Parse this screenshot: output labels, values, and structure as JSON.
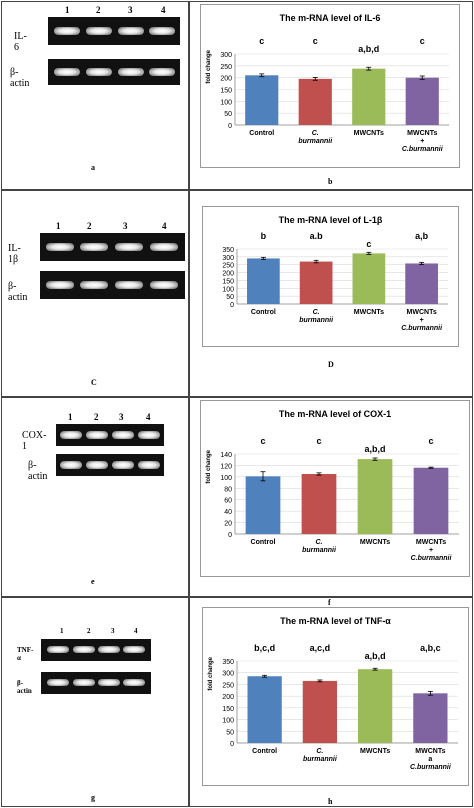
{
  "rows": [
    {
      "gel": {
        "lanes": [
          "1",
          "2",
          "3",
          "4"
        ],
        "gene_label": "IL-6",
        "actin_label": "β-actin",
        "panel_letter": "a"
      },
      "chart_letter": "b",
      "chart_data": {
        "type": "bar",
        "title": "The m-RNA level of IL-6",
        "ylabel": "fold change",
        "xlabel": "",
        "ylim": [
          0,
          300
        ],
        "yticks": [
          0,
          50,
          100,
          150,
          200,
          250,
          300
        ],
        "categories": [
          "Control",
          "C. burmannii",
          "MWCNTs",
          "MWCNTs + C.burmannii"
        ],
        "values": [
          210,
          195,
          238,
          200
        ],
        "errors": [
          6,
          6,
          6,
          7
        ],
        "sig_labels": [
          "c",
          "c",
          "a,b,d",
          "c"
        ],
        "colors": [
          "#4f81bd",
          "#c0504d",
          "#9bbb59",
          "#8064a2"
        ]
      }
    },
    {
      "gel": {
        "lanes": [
          "1",
          "2",
          "3",
          "4"
        ],
        "gene_label": "IL-1β",
        "actin_label": "β-actin",
        "panel_letter": "C"
      },
      "chart_letter": "D",
      "chart_data": {
        "type": "bar",
        "title": "The m-RNA level of L-1β",
        "ylabel": "",
        "xlabel": "",
        "ylim": [
          0,
          350
        ],
        "yticks": [
          0,
          50,
          100,
          150,
          200,
          250,
          300,
          350
        ],
        "categories": [
          "Control",
          "C. burmannii",
          "MWCNTs",
          "MWCNTs + C.burmannii"
        ],
        "values": [
          290,
          270,
          322,
          258
        ],
        "errors": [
          7,
          8,
          7,
          7
        ],
        "sig_labels": [
          "b",
          "a.b",
          "c",
          "a,b"
        ],
        "colors": [
          "#4f81bd",
          "#c0504d",
          "#9bbb59",
          "#8064a2"
        ]
      }
    },
    {
      "gel": {
        "lanes": [
          "1",
          "2",
          "3",
          "4"
        ],
        "gene_label": "COX-1",
        "actin_label": "β-actin",
        "panel_letter": "e"
      },
      "chart_letter": "f",
      "chart_data": {
        "type": "bar",
        "title": "The m-RNA level of COX-1",
        "ylabel": "fold change",
        "xlabel": "",
        "ylim": [
          0,
          140
        ],
        "yticks": [
          0,
          20,
          40,
          60,
          80,
          100,
          120,
          140
        ],
        "categories": [
          "Control",
          "C. burmannii",
          "MWCNTs",
          "MWCNTs + C.burmannii"
        ],
        "values": [
          101,
          105,
          131,
          116
        ],
        "errors": [
          8,
          2,
          2,
          1
        ],
        "sig_labels": [
          "c",
          "c",
          "a,b,d",
          "c"
        ],
        "colors": [
          "#4f81bd",
          "#c0504d",
          "#9bbb59",
          "#8064a2"
        ]
      }
    },
    {
      "gel": {
        "lanes": [
          "1",
          "2",
          "3",
          "4"
        ],
        "gene_label": "TNF-α",
        "actin_label": "β-actin",
        "panel_letter": "g"
      },
      "chart_letter": "h",
      "chart_data": {
        "type": "bar",
        "title": "The m-RNA level of TNF-α",
        "ylabel": "fold change",
        "xlabel": "",
        "ylim": [
          0,
          350
        ],
        "yticks": [
          0,
          50,
          100,
          150,
          200,
          250,
          300,
          350
        ],
        "categories": [
          "Control",
          "C. burmannii",
          "MWCNTs",
          "MWCNTs a C.burmannii"
        ],
        "values": [
          285,
          265,
          315,
          212
        ],
        "errors": [
          4,
          4,
          4,
          8
        ],
        "sig_labels": [
          "b,c,d",
          "a,c,d",
          "a,b,d",
          "a,b,c"
        ],
        "colors": [
          "#4f81bd",
          "#c0504d",
          "#9bbb59",
          "#8064a2"
        ]
      }
    }
  ]
}
